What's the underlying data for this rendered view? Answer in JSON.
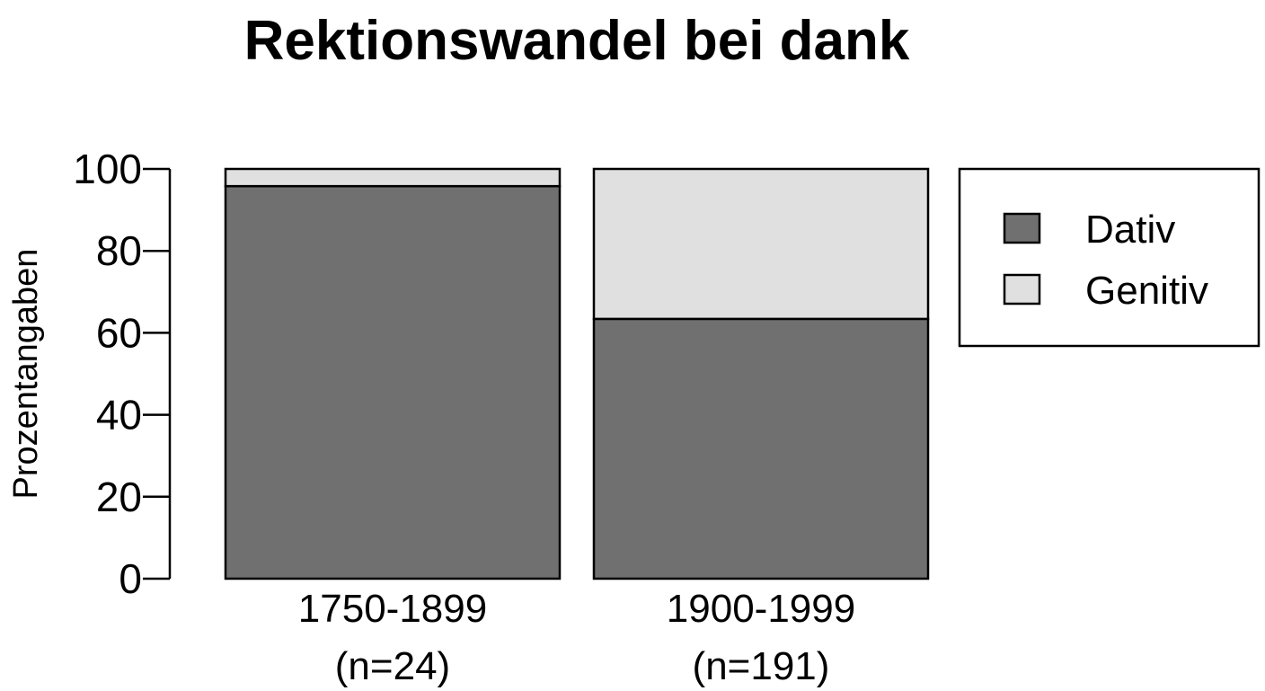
{
  "chart_data": {
    "type": "bar",
    "stacked": true,
    "title": "Rektionswandel bei dank",
    "xlabel": "",
    "ylabel": "Prozentangaben",
    "ylim": [
      0,
      100
    ],
    "yticks": [
      "0",
      "20",
      "40",
      "60",
      "80",
      "100"
    ],
    "categories": [
      {
        "line1": "1750-1899",
        "line2": "(n=24)"
      },
      {
        "line1": "1900-1999",
        "line2": "(n=191)"
      }
    ],
    "series": [
      {
        "name": "Dativ",
        "color": "#707070",
        "values": [
          95.8,
          63.4
        ]
      },
      {
        "name": "Genitiv",
        "color": "#e0e0e0",
        "values": [
          4.2,
          36.6
        ]
      }
    ],
    "legend": {
      "position": "right",
      "box": true
    },
    "grid": false
  }
}
